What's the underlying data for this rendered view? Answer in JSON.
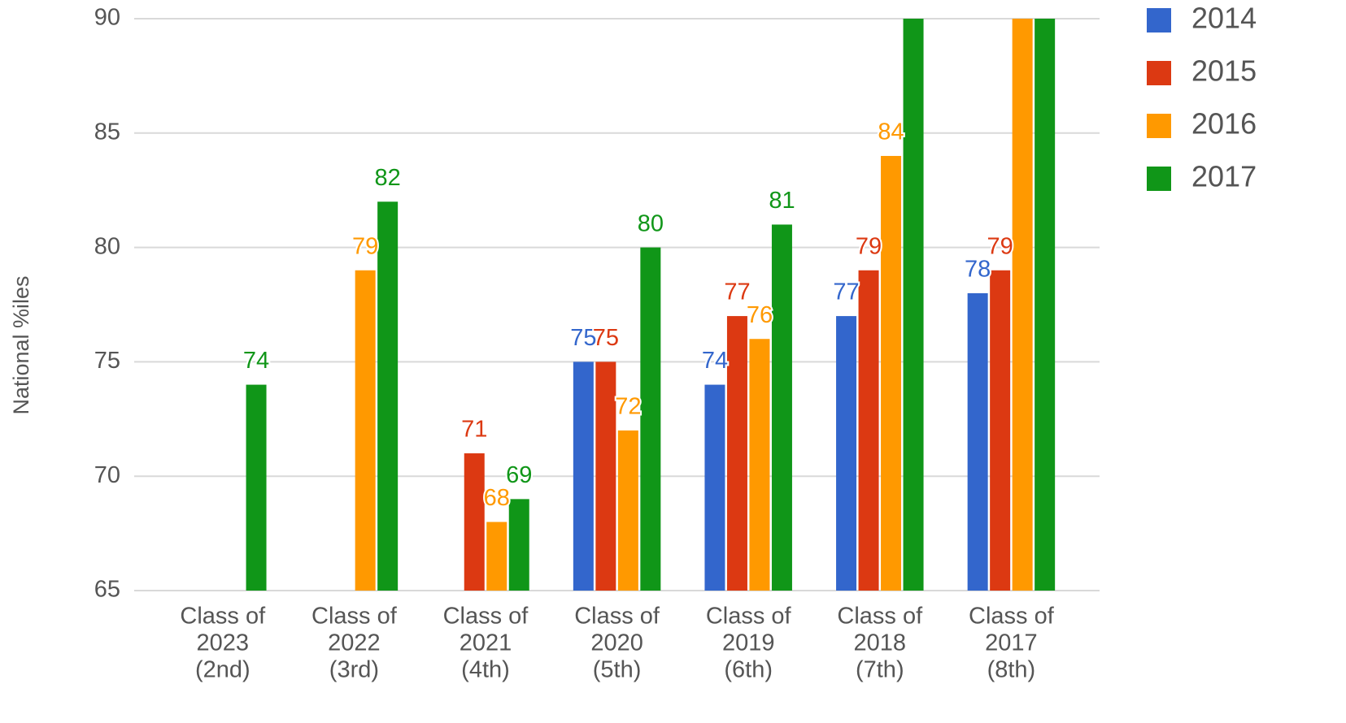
{
  "chart_data": {
    "type": "bar",
    "y_label": "National %iles",
    "categories": [
      [
        "Class of",
        "2023",
        "(2nd)"
      ],
      [
        "Class of",
        "2022",
        "(3rd)"
      ],
      [
        "Class of",
        "2021",
        "(4th)"
      ],
      [
        "Class of",
        "2020",
        "(5th)"
      ],
      [
        "Class of",
        "2019",
        "(6th)"
      ],
      [
        "Class of",
        "2018",
        "(7th)"
      ],
      [
        "Class of",
        "2017",
        "(8th)"
      ]
    ],
    "series": [
      {
        "name": "2014",
        "color": "#3366cc",
        "values": [
          null,
          null,
          null,
          75,
          74,
          77,
          78
        ]
      },
      {
        "name": "2015",
        "color": "#dc3912",
        "values": [
          null,
          null,
          71,
          75,
          77,
          79,
          79
        ]
      },
      {
        "name": "2016",
        "color": "#ff9900",
        "values": [
          null,
          79,
          68,
          72,
          76,
          84,
          91
        ]
      },
      {
        "name": "2017",
        "color": "#109618",
        "values": [
          74,
          82,
          69,
          80,
          81,
          91,
          91
        ]
      }
    ],
    "ylim": [
      65,
      90
    ],
    "yticks": [
      65,
      70,
      75,
      80,
      85,
      90
    ],
    "grid": true,
    "legend": "right"
  }
}
